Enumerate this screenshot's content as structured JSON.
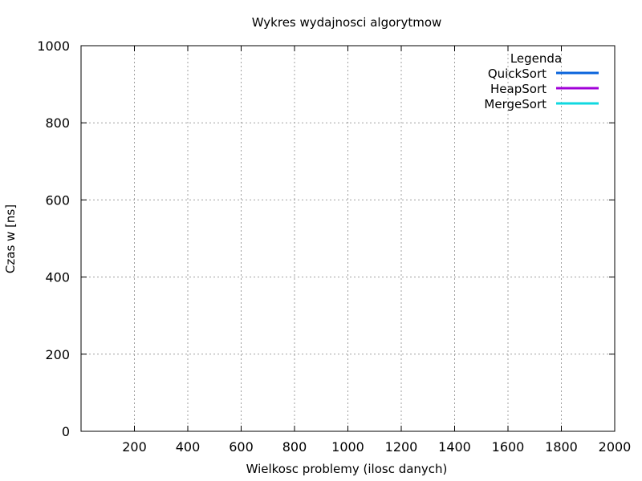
{
  "chart_data": {
    "type": "line",
    "title": "Wykres wydajnosci algorytmow",
    "xlabel": "Wielkosc problemy (ilosc danych)",
    "ylabel": "Czas w [ns]",
    "xlim": [
      0,
      2000
    ],
    "ylim": [
      0,
      1000
    ],
    "x_ticks": [
      200,
      400,
      600,
      800,
      1000,
      1200,
      1400,
      1600,
      1800,
      2000
    ],
    "y_ticks": [
      0,
      200,
      400,
      600,
      800,
      1000
    ],
    "grid": true,
    "legend": {
      "title": "Legenda",
      "placement": "top-right"
    },
    "series": [
      {
        "name": "QuickSort",
        "color": "#0a64dc",
        "points": []
      },
      {
        "name": "HeapSort",
        "color": "#a000d8",
        "points": []
      },
      {
        "name": "MergeSort",
        "color": "#10d8e0",
        "points": []
      }
    ]
  }
}
